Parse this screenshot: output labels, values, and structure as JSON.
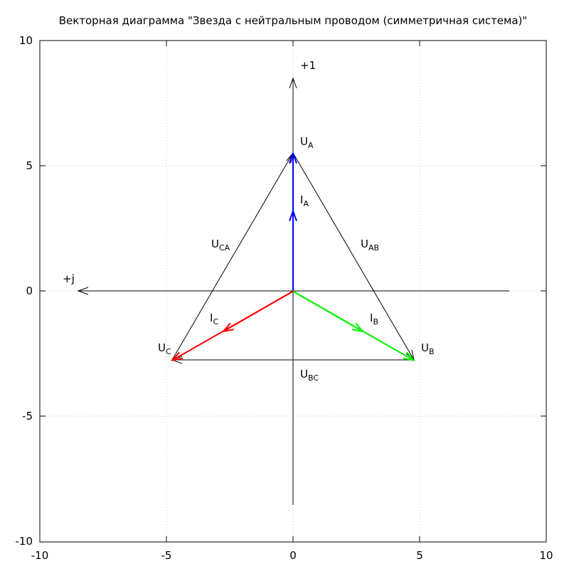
{
  "title": "Векторная диаграмма \"Звезда с нейтральным проводом (симметричная система)\"",
  "axes": {
    "xlim": [
      -10,
      10
    ],
    "ylim": [
      -10,
      10
    ],
    "x_ticks": [
      "-10",
      "-5",
      "0",
      "5",
      "10"
    ],
    "y_ticks": [
      "10",
      "5",
      "0",
      "-5",
      "-10"
    ],
    "grid": true
  },
  "axis_labels": {
    "real": "+1",
    "imag": "+j"
  },
  "colors": {
    "phase_a": "#0000ff",
    "phase_b": "#00ee00",
    "phase_c": "#ff0000",
    "line": "#000000"
  },
  "voltages": {
    "A": {
      "main": "U",
      "sub": "A",
      "x": 0,
      "y": 5.5
    },
    "B": {
      "main": "U",
      "sub": "B",
      "x": 4.76,
      "y": -2.75
    },
    "C": {
      "main": "U",
      "sub": "C",
      "x": -4.76,
      "y": -2.75
    }
  },
  "currents": {
    "A": {
      "main": "I",
      "sub": "A",
      "x": 0,
      "y": 3.2
    },
    "B": {
      "main": "I",
      "sub": "B",
      "x": 2.75,
      "y": -1.6
    },
    "C": {
      "main": "I",
      "sub": "C",
      "x": -2.75,
      "y": -1.6
    }
  },
  "line_voltages": {
    "AB": {
      "main": "U",
      "sub": "AB"
    },
    "BC": {
      "main": "U",
      "sub": "BC"
    },
    "CA": {
      "main": "U",
      "sub": "CA"
    }
  }
}
